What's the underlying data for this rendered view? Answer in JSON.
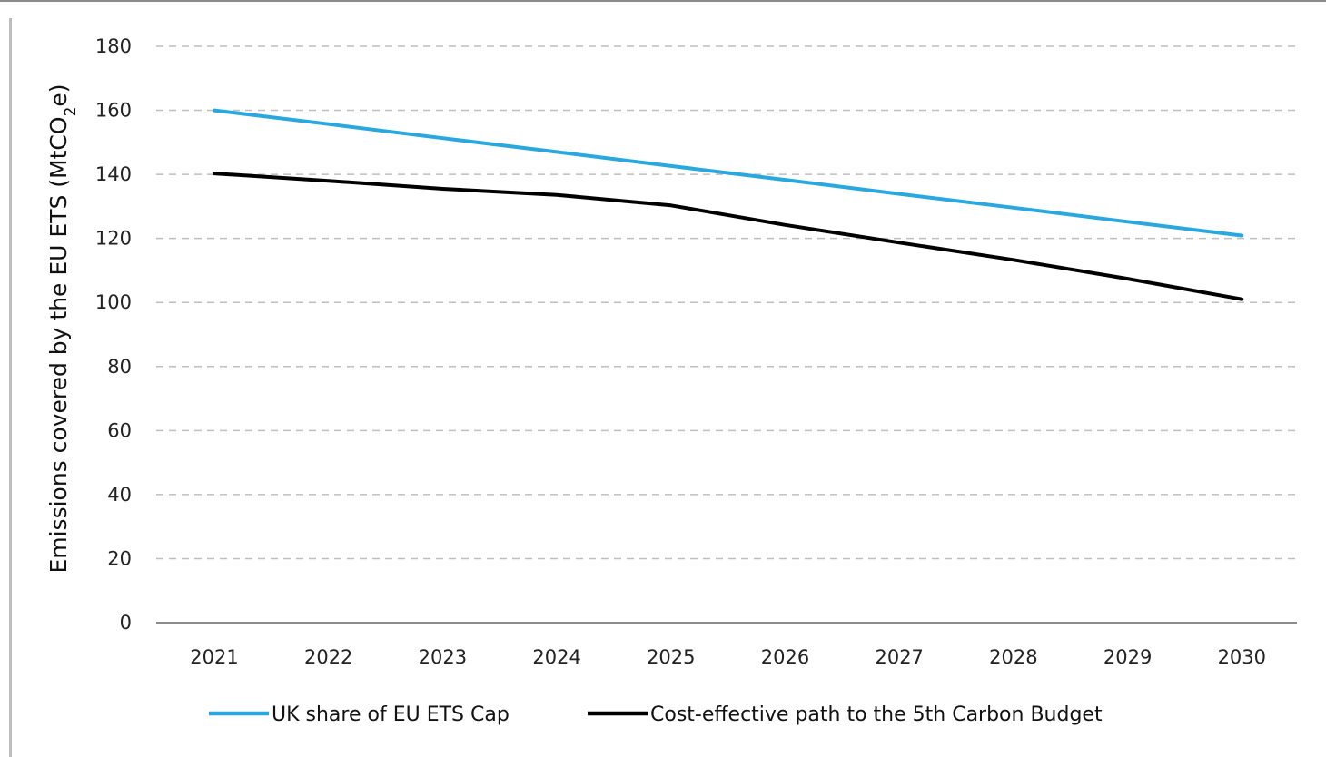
{
  "chart_data": {
    "type": "line",
    "title": "",
    "xlabel": "",
    "ylabel": {
      "main": "Emissions covered by the EU ETS (MtCO",
      "sub": "2",
      "tail": "e)"
    },
    "ylim": [
      0,
      180
    ],
    "yticks": [
      0,
      20,
      40,
      60,
      80,
      100,
      120,
      140,
      160,
      180
    ],
    "grid": "horizontal-dashed",
    "legend_position": "bottom",
    "x": [
      "2021",
      "2022",
      "2023",
      "2024",
      "2025",
      "2026",
      "2027",
      "2028",
      "2029",
      "2030"
    ],
    "series": [
      {
        "name": "UK share of EU ETS Cap",
        "color": "#29a8e0",
        "values": [
          160,
          155.7,
          151.3,
          147,
          142.6,
          138.3,
          133.9,
          129.6,
          125.2,
          120.9
        ]
      },
      {
        "name": "Cost-effective path to the 5th Carbon Budget",
        "color": "#000000",
        "values": [
          140.3,
          138,
          135.5,
          133.6,
          130.3,
          124.2,
          118.7,
          113.3,
          107.4,
          101
        ]
      }
    ]
  }
}
